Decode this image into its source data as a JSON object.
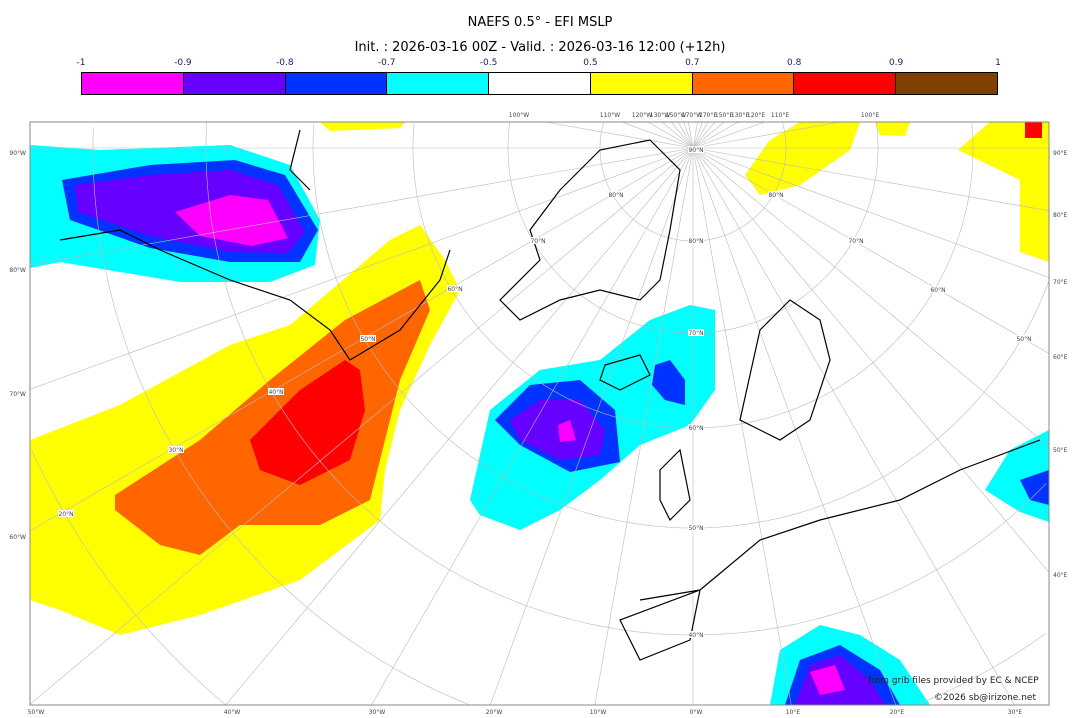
{
  "title": "NAEFS 0.5° - EFI MSLP",
  "subtitle": "Init. : 2026-03-16 00Z - Valid. : 2026-03-16 12:00 (+12h)",
  "colorbar": {
    "labels": [
      "-1",
      "-0.9",
      "-0.8",
      "-0.7",
      "-0.5",
      "0.5",
      "0.7",
      "0.8",
      "0.9",
      "1"
    ],
    "colors": [
      "#ff00ff",
      "#6600ff",
      "#0033ff",
      "#00ffff",
      "#ffffff",
      "#ffff00",
      "#ff6600",
      "#ff0000",
      "#804000"
    ]
  },
  "axes": {
    "bottom": [
      "50°W",
      "40°W",
      "30°W",
      "20°W",
      "10°W",
      "0°W",
      "10°E",
      "20°E",
      "30°E"
    ],
    "left": [
      "90°W",
      "80°W",
      "70°W",
      "60°W"
    ],
    "right": [
      "90°E",
      "80°E",
      "70°E",
      "60°E",
      "50°E",
      "40°E"
    ],
    "top": [
      "100°W",
      "110°W",
      "120°W",
      "130°W",
      "150°W",
      "170°W",
      "170°E",
      "150°E",
      "130°E",
      "120°E",
      "110°E",
      "100°E"
    ]
  },
  "lat_labels": [
    "90°N",
    "80°N",
    "70°N",
    "60°N",
    "50°N",
    "40°N",
    "30°N",
    "20°N"
  ],
  "credits": {
    "line1": "from grib files provided by EC & NCEP",
    "line2": "©2026 sb@irizone.net"
  }
}
